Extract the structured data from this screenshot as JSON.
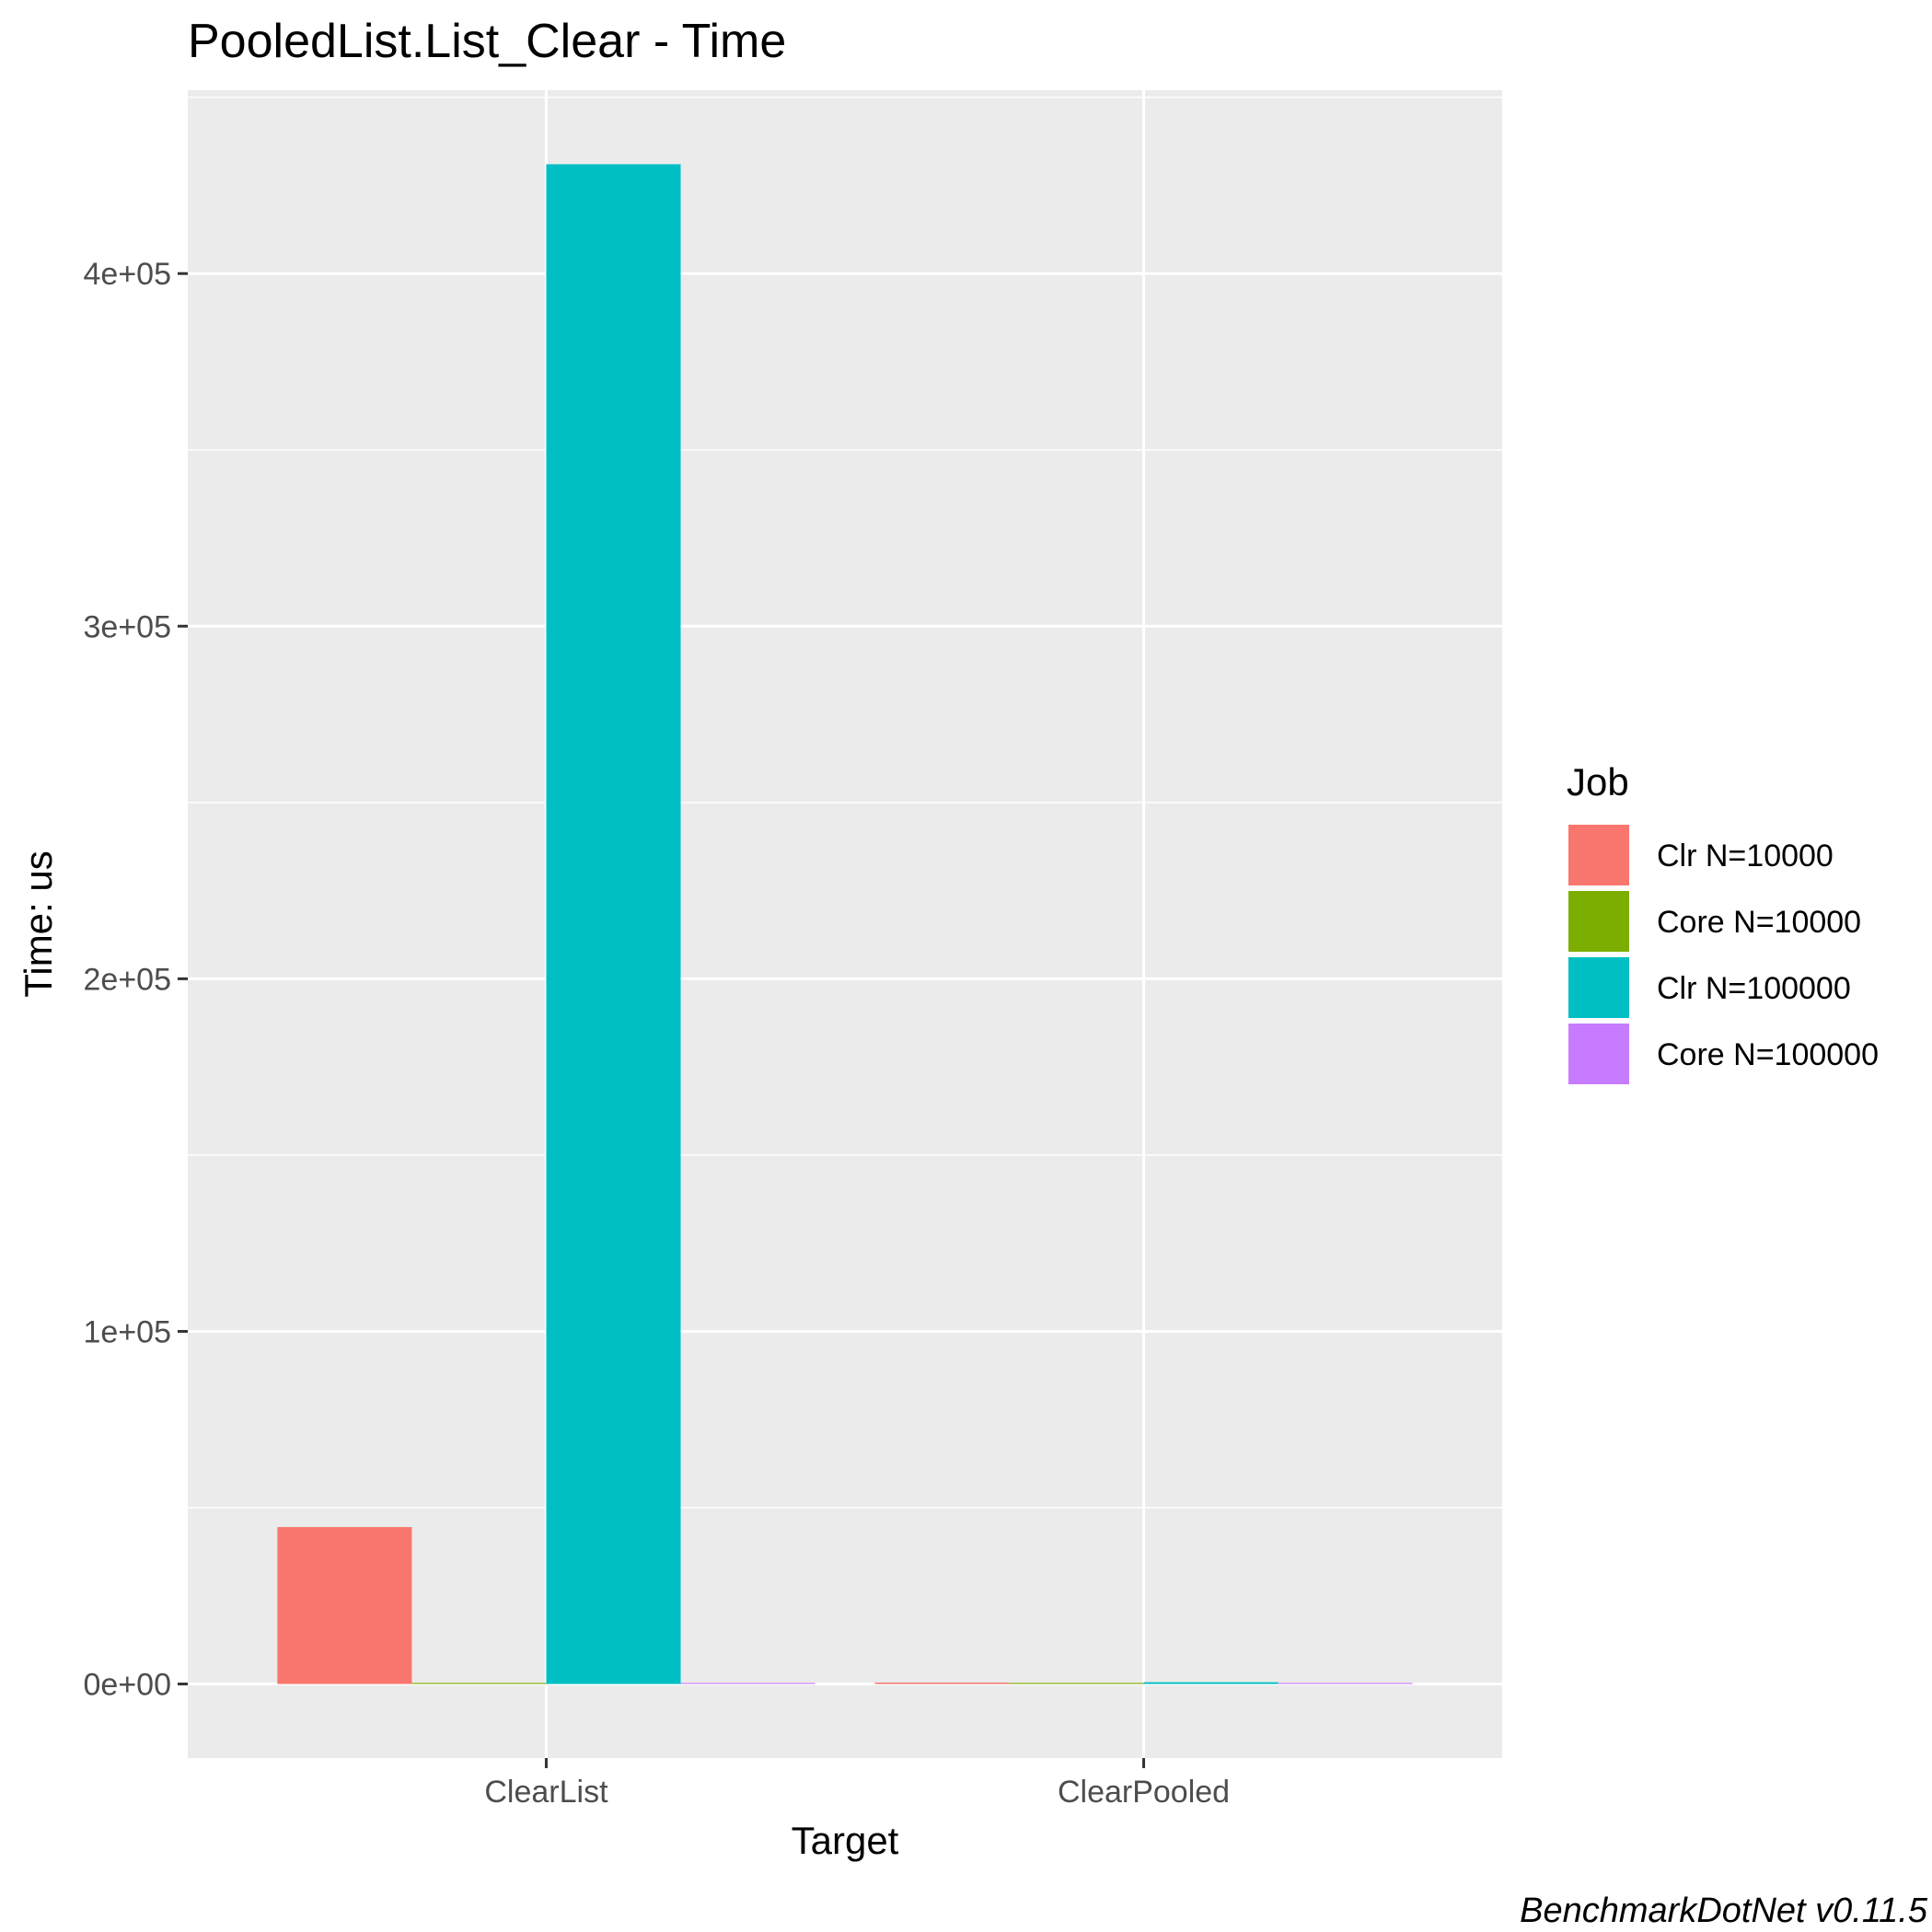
{
  "chart_data": {
    "type": "bar",
    "title": "PooledList.List_Clear - Time",
    "xlabel": "Target",
    "ylabel": "Time: us",
    "categories": [
      "ClearList",
      "ClearPooled"
    ],
    "series": [
      {
        "name": "Clr N=10000",
        "color": "#F8766D",
        "values": [
          44500,
          400
        ]
      },
      {
        "name": "Core N=10000",
        "color": "#7CAE00",
        "values": [
          300,
          150
        ]
      },
      {
        "name": "Clr N=100000",
        "color": "#00BFC4",
        "values": [
          431000,
          500
        ]
      },
      {
        "name": "Core N=100000",
        "color": "#C77CFF",
        "values": [
          0,
          0
        ]
      }
    ],
    "ylim": [
      -21000,
      452000
    ],
    "yticks": [
      0,
      100000,
      200000,
      300000,
      400000
    ],
    "ytick_labels": [
      "0e+00",
      "1e+05",
      "2e+05",
      "3e+05",
      "4e+05"
    ],
    "legend_title": "Job",
    "legend_position": "right",
    "grid": true,
    "panel_background": "#EBEBEB",
    "caption": "BenchmarkDotNet v0.11.5"
  }
}
